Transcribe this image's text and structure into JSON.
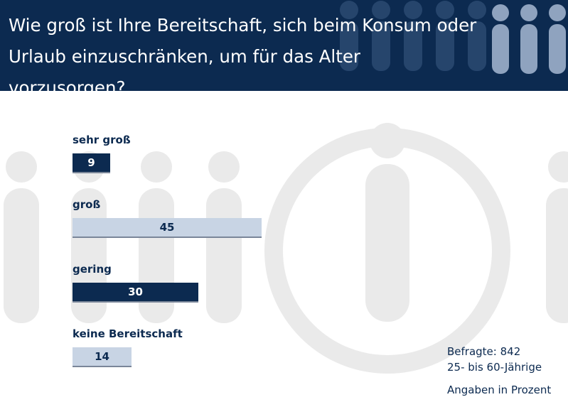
{
  "header": {
    "title_line1": "Wie groß ist Ihre Bereitschaft, sich beim Konsum oder",
    "title_line2": "Urlaub einzuschränken, um für das Alter vorzusorgen?"
  },
  "notes": {
    "respondents": "Befragte: 842",
    "age_group": "25- bis 60-Jährige",
    "unit": "Angaben in Prozent"
  },
  "colors": {
    "dark": "#0c2a50",
    "light": "#c8d4e4",
    "bar_shadow": "#7a8699",
    "bg_figure": "#eaeaea"
  },
  "chart_data": {
    "type": "bar",
    "orientation": "horizontal",
    "categories": [
      "sehr groß",
      "groß",
      "gering",
      "keine Bereitschaft"
    ],
    "values": [
      9,
      45,
      30,
      14
    ],
    "value_labels": [
      "9",
      "45",
      "30",
      "14"
    ],
    "bar_colors": [
      "#0c2a50",
      "#c8d4e4",
      "#0c2a50",
      "#c8d4e4"
    ],
    "label_colors": [
      "#ffffff",
      "#0c2a50",
      "#ffffff",
      "#0c2a50"
    ],
    "title": "Wie groß ist Ihre Bereitschaft, sich beim Konsum oder Urlaub einzuschränken, um für das Alter vorzusorgen?",
    "unit": "%",
    "grid": false
  }
}
